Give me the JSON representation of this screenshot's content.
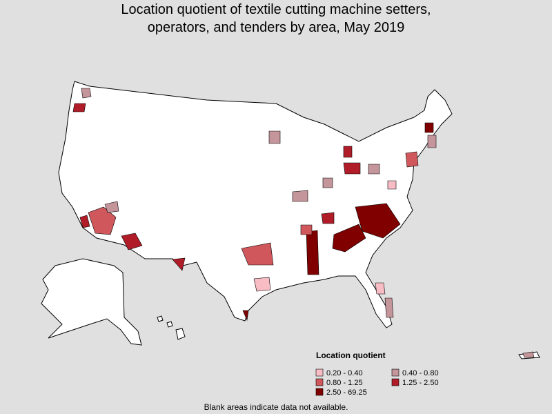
{
  "title": [
    "Location quotient of textile cutting machine setters,",
    "operators, and tenders by area, May 2019"
  ],
  "legend": {
    "title": "Location quotient",
    "items": [
      {
        "label": "0.20 - 0.40",
        "color": "#f8bcc4"
      },
      {
        "label": "0.40 - 0.80",
        "color": "#c4959a"
      },
      {
        "label": "0.80 - 1.25",
        "color": "#d0585c"
      },
      {
        "label": "1.25 - 2.50",
        "color": "#b01c28"
      },
      {
        "label": "2.50 - 69.25",
        "color": "#800000"
      }
    ]
  },
  "note": "Blank areas indicate data not available."
}
